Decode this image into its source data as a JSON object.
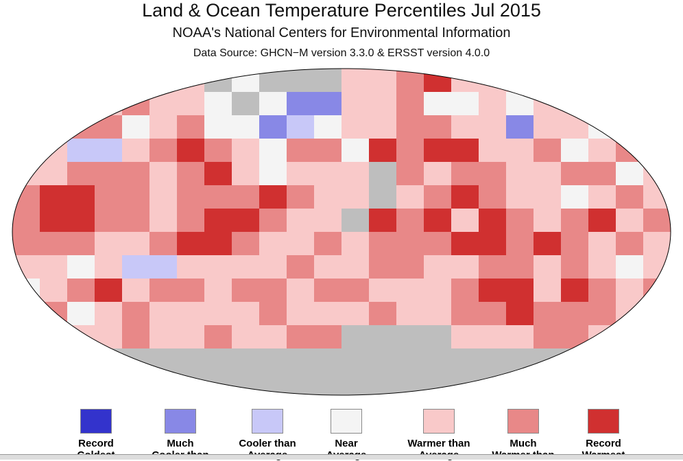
{
  "title": "Land & Ocean Temperature Percentiles Jul 2015",
  "subtitle": "NOAA's National Centers for Environmental Information",
  "source": "Data Source: GHCN−M version 3.3.0 & ERSST version 4.0.0",
  "colors": {
    "g": "#bebebe",
    "0": "#3333cc",
    "1": "#8888e6",
    "2": "#c8c8f8",
    "3": "#f4f4f4",
    "4": "#f9c9c9",
    "5": "#e88888",
    "6": "#d03030"
  },
  "legend": [
    {
      "code": "0",
      "lines": [
        "Record",
        "Coldest"
      ]
    },
    {
      "code": "1",
      "lines": [
        "Much",
        "Cooler than"
      ]
    },
    {
      "code": "2",
      "lines": [
        "Cooler than",
        "Average"
      ]
    },
    {
      "code": "3",
      "lines": [
        "Near",
        "Average"
      ]
    },
    {
      "code": "4",
      "lines": [
        "Warmer than",
        "Average"
      ]
    },
    {
      "code": "5",
      "lines": [
        "Much",
        "Warmer than"
      ]
    },
    {
      "code": "6",
      "lines": [
        "Record",
        "Warmest"
      ]
    }
  ],
  "grid": [
    "ggggg44g3ggg4456444gg4gg",
    "g4545443g3114453343444gg",
    "g5553453312344554414434g",
    "24224565435536566445345g",
    "4455545643444g5455445534",
    "5665545556544g4565443454",
    "566554566544g65646545645",
    "555445665445455566565454",
    "443422444454455445545434",
    "345645545545544456646545",
    "453454444544454455655544",
    "g44454454455gggg44455444",
    "gggggggggggggggggggggggg",
    "gggggggggggggggggggggggg"
  ]
}
